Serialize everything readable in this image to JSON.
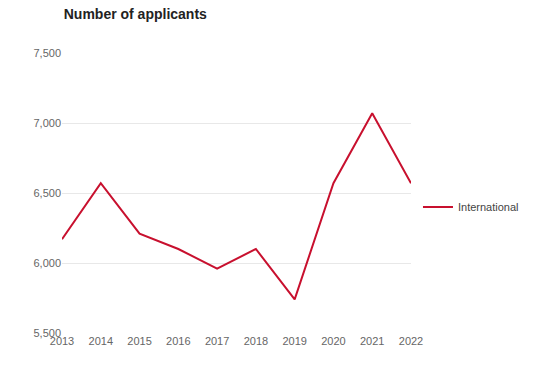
{
  "chart_data": {
    "type": "line",
    "title": "Number of applicants",
    "categories": [
      "2013",
      "2014",
      "2015",
      "2016",
      "2017",
      "2018",
      "2019",
      "2020",
      "2021",
      "2022"
    ],
    "series": [
      {
        "name": "International",
        "color": "#c8102e",
        "values": [
          6170,
          6570,
          6210,
          6100,
          5960,
          6100,
          5740,
          6570,
          7070,
          6570
        ]
      }
    ],
    "ylim": [
      5500,
      7500
    ],
    "yticks": [
      {
        "value": 5500,
        "label": "5,500"
      },
      {
        "value": 6000,
        "label": "6,000"
      },
      {
        "value": 6500,
        "label": "6,500"
      },
      {
        "value": 7000,
        "label": "7,000"
      },
      {
        "value": 7500,
        "label": "7,500"
      }
    ],
    "grid": true,
    "legend": "right"
  }
}
